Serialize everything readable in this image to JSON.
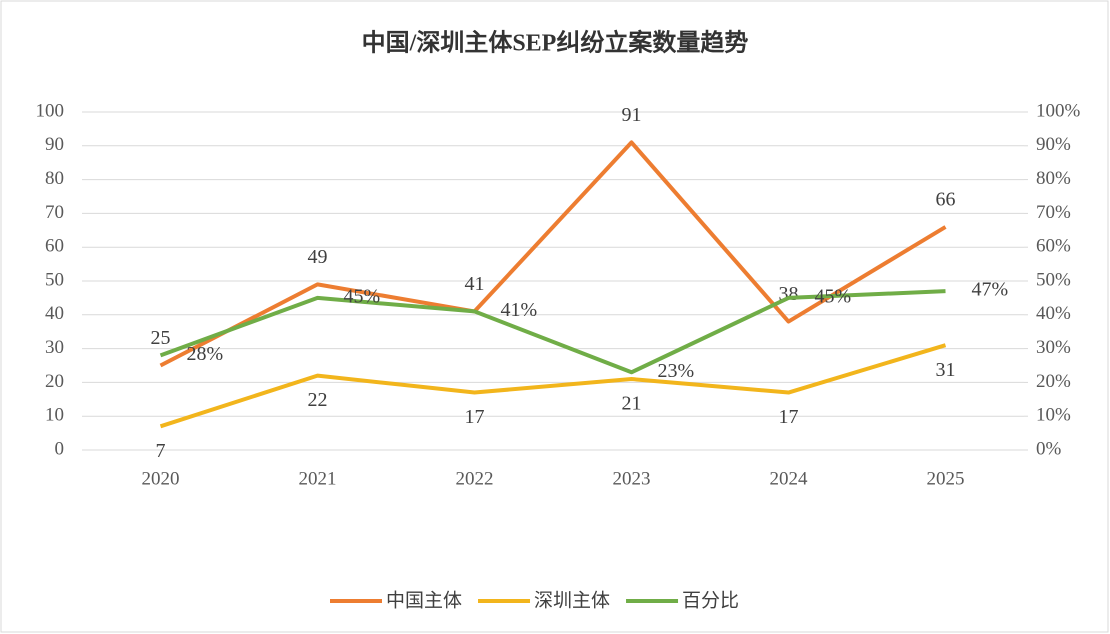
{
  "chart_data": {
    "type": "line",
    "title": "中国/深圳主体SEP纠纷立案数量趋势",
    "categories": [
      "2020",
      "2021",
      "2022",
      "2023",
      "2024",
      "2025"
    ],
    "series": [
      {
        "name": "中国主体",
        "color": "#ed7d31",
        "values": [
          25,
          49,
          41,
          91,
          38,
          66
        ]
      },
      {
        "name": "深圳主体",
        "color": "#f2b51c",
        "values": [
          7,
          22,
          17,
          21,
          17,
          31
        ]
      },
      {
        "name": "百分比",
        "color": "#70ad47",
        "axis": "y2",
        "values": [
          28,
          45,
          41,
          23,
          45,
          47
        ],
        "value_labels": [
          "28%",
          "45%",
          "41%",
          "23%",
          "45%",
          "47%"
        ]
      }
    ],
    "ylim": [
      0,
      100
    ],
    "yticks": [
      0,
      10,
      20,
      30,
      40,
      50,
      60,
      70,
      80,
      90,
      100
    ],
    "y2lim": [
      0,
      100
    ],
    "y2ticks": [
      {
        "value": 0,
        "label": "0%"
      },
      {
        "value": 10,
        "label": "10%"
      },
      {
        "value": 20,
        "label": "20%"
      },
      {
        "value": 30,
        "label": "30%"
      },
      {
        "value": 40,
        "label": "40%"
      },
      {
        "value": 50,
        "label": "50%"
      },
      {
        "value": 60,
        "label": "60%"
      },
      {
        "value": 70,
        "label": "70%"
      },
      {
        "value": 80,
        "label": "80%"
      },
      {
        "value": 90,
        "label": "90%"
      },
      {
        "value": 100,
        "label": "100%"
      }
    ],
    "grid": true,
    "legend": "bottom"
  }
}
